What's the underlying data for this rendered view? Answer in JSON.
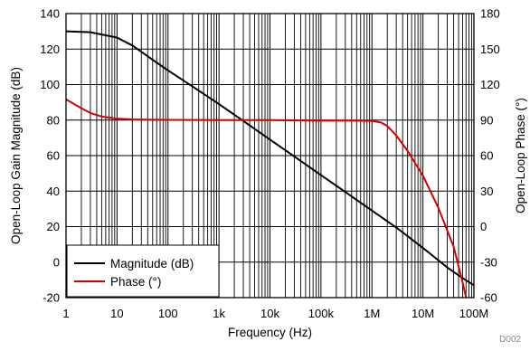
{
  "chart_data": {
    "type": "line",
    "xlabel": "Frequency (Hz)",
    "ylabel_left": "Open-Loop Gain Magnitude (dB)",
    "ylabel_right": "Open-Loop Phase (°)",
    "x_scale": "log",
    "xlim": [
      1,
      100000000
    ],
    "ylim_left": [
      -20,
      140
    ],
    "ylim_right": [
      -60,
      180
    ],
    "grid": true,
    "legend_position": "bottom-left",
    "x_ticks": [
      {
        "value": 1,
        "label": "1"
      },
      {
        "value": 10,
        "label": "10"
      },
      {
        "value": 100,
        "label": "100"
      },
      {
        "value": 1000,
        "label": "1k"
      },
      {
        "value": 10000,
        "label": "10k"
      },
      {
        "value": 100000,
        "label": "100k"
      },
      {
        "value": 1000000,
        "label": "1M"
      },
      {
        "value": 10000000,
        "label": "10M"
      },
      {
        "value": 100000000,
        "label": "100M"
      }
    ],
    "y_ticks_left": [
      {
        "value": 140,
        "label": "140"
      },
      {
        "value": 120,
        "label": "120"
      },
      {
        "value": 100,
        "label": "100"
      },
      {
        "value": 80,
        "label": "80"
      },
      {
        "value": 60,
        "label": "60"
      },
      {
        "value": 40,
        "label": "40"
      },
      {
        "value": 20,
        "label": "20"
      },
      {
        "value": 0,
        "label": "0"
      },
      {
        "value": -20,
        "label": "-20"
      }
    ],
    "y_ticks_right": [
      {
        "value": 180,
        "label": "180"
      },
      {
        "value": 150,
        "label": "150"
      },
      {
        "value": 120,
        "label": "120"
      },
      {
        "value": 90,
        "label": "90"
      },
      {
        "value": 60,
        "label": "60"
      },
      {
        "value": 30,
        "label": "30"
      },
      {
        "value": 0,
        "label": "0"
      },
      {
        "value": -30,
        "label": "-30"
      },
      {
        "value": -60,
        "label": "-60"
      }
    ],
    "series": [
      {
        "name": "Magnitude (dB)",
        "axis": "left",
        "color": "#000000",
        "x": [
          1,
          3,
          10,
          20,
          50,
          100,
          300,
          1000,
          3000,
          10000,
          30000,
          100000,
          300000,
          1000000,
          3000000,
          10000000,
          30000000,
          60000000,
          100000000
        ],
        "y": [
          130,
          129.5,
          126.5,
          122,
          114,
          108,
          99,
          89,
          79.5,
          69,
          59.5,
          49,
          39.5,
          29,
          19.5,
          8,
          -3,
          -9,
          -13
        ]
      },
      {
        "name": "Phase (°)",
        "axis": "right",
        "color": "#d40000",
        "x": [
          1,
          2,
          3,
          5,
          10,
          20,
          50,
          100,
          1000,
          10000,
          100000,
          500000,
          1000000,
          1500000,
          2000000,
          3000000,
          5000000,
          10000000,
          20000000,
          40000000,
          60000000,
          70000000
        ],
        "y": [
          107.5,
          100,
          96,
          93,
          91.2,
          90.6,
          90.3,
          90.2,
          90,
          90,
          89.5,
          89.5,
          89.3,
          88,
          85,
          77,
          64,
          43,
          16,
          -17,
          -47,
          -60
        ]
      }
    ],
    "code": "D002"
  }
}
